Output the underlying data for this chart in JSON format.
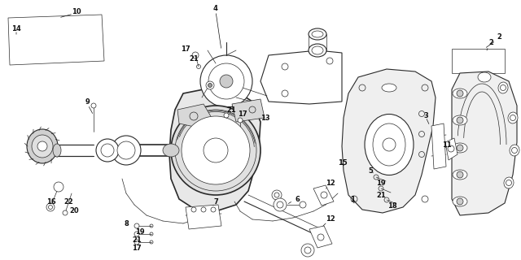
{
  "bg_color": "#ffffff",
  "line_color": "#2a2a2a",
  "label_color": "#111111",
  "figsize": [
    6.4,
    3.2
  ],
  "dpi": 100,
  "lw_thin": 0.5,
  "lw_med": 0.8,
  "lw_thick": 1.2,
  "fs": 6.0
}
